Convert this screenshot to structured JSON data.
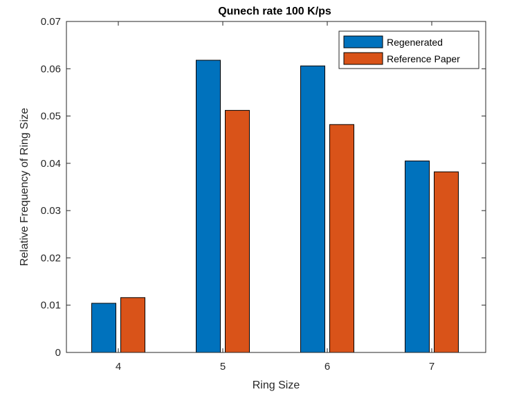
{
  "chart_data": {
    "type": "bar",
    "title": "Qunech rate 100 K/ps",
    "xlabel": "Ring Size",
    "ylabel": "Relative Frequency of Ring Size",
    "categories": [
      "4",
      "5",
      "6",
      "7"
    ],
    "ylim": [
      0,
      0.07
    ],
    "yticks": [
      "0",
      "0.01",
      "0.02",
      "0.03",
      "0.04",
      "0.05",
      "0.06",
      "0.07"
    ],
    "series": [
      {
        "name": "Regenerated",
        "color": "#0072BD",
        "values": [
          0.0104,
          0.0618,
          0.0606,
          0.0405
        ]
      },
      {
        "name": "Reference Paper",
        "color": "#D95319",
        "values": [
          0.0116,
          0.0512,
          0.0482,
          0.0382
        ]
      }
    ],
    "grid": false,
    "legend": "top-right"
  }
}
